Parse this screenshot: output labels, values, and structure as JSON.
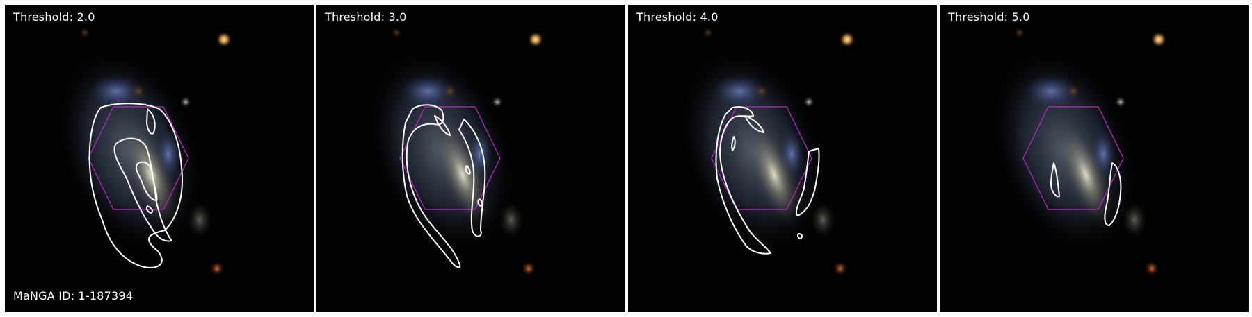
{
  "panels": [
    {
      "threshold_label": "Threshold: 2.0"
    },
    {
      "threshold_label": "Threshold: 3.0"
    },
    {
      "threshold_label": "Threshold: 4.0"
    },
    {
      "threshold_label": "Threshold: 5.0"
    }
  ],
  "galaxy_id_label": "MaNGA ID: 1-187394",
  "colors": {
    "contour": "#ffffff",
    "hexagon": "#c026c8",
    "background": "#020202"
  }
}
